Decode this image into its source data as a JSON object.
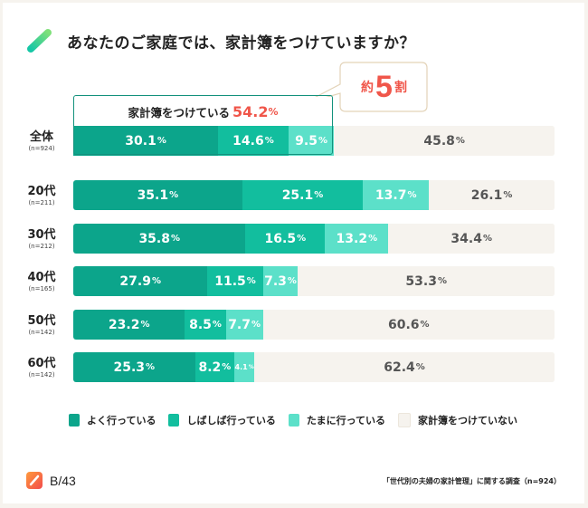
{
  "title": "あなたのご家庭では、家計簿をつけていますか？",
  "callout": {
    "prefix": "約",
    "number": "5",
    "suffix": "割"
  },
  "highlight": {
    "label": "家計簿をつけている",
    "value": "54.2",
    "unit": "%"
  },
  "colors": {
    "often": "#0ca58b",
    "sometimes": "#12be9e",
    "occasionally": "#5ce0c9",
    "none": "#f6f3ee",
    "accent": "#f0564a",
    "highlight_border": "#12917c"
  },
  "legend": [
    {
      "label": "よく行っている",
      "key": "often"
    },
    {
      "label": "しばしば行っている",
      "key": "sometimes"
    },
    {
      "label": "たまに行っている",
      "key": "occasionally"
    },
    {
      "label": "家計簿をつけていない",
      "key": "none"
    }
  ],
  "footer": {
    "logo_text": "B/43",
    "source": "「世代別の夫婦の家計管理」に関する調査（n=924）"
  },
  "chart_data": {
    "type": "bar",
    "orientation": "horizontal",
    "stacked": true,
    "title": "あなたのご家庭では、家計簿をつけていますか？",
    "unit": "%",
    "xlim": [
      0,
      100
    ],
    "grid": false,
    "legend_position": "bottom",
    "categories": [
      {
        "label": "全体",
        "n": "(n=924)"
      },
      {
        "label": "20代",
        "n": "(n=211)"
      },
      {
        "label": "30代",
        "n": "(n=212)"
      },
      {
        "label": "40代",
        "n": "(n=165)"
      },
      {
        "label": "50代",
        "n": "(n=142)"
      },
      {
        "label": "60代",
        "n": "(n=142)"
      }
    ],
    "series": [
      {
        "name": "よく行っている",
        "key": "often",
        "values": [
          30.1,
          35.1,
          35.8,
          27.9,
          23.2,
          25.3
        ]
      },
      {
        "name": "しばしば行っている",
        "key": "sometimes",
        "values": [
          14.6,
          25.1,
          16.5,
          11.5,
          8.5,
          8.2
        ]
      },
      {
        "name": "たまに行っている",
        "key": "occasionally",
        "values": [
          9.5,
          13.7,
          13.2,
          7.3,
          7.7,
          4.1
        ]
      },
      {
        "name": "家計簿をつけていない",
        "key": "none",
        "values": [
          45.8,
          26.1,
          34.4,
          53.3,
          60.6,
          62.4
        ]
      }
    ],
    "annotations": [
      {
        "text": "家計簿をつけている54.2%",
        "target": "全体"
      },
      {
        "text": "約5割"
      }
    ]
  }
}
